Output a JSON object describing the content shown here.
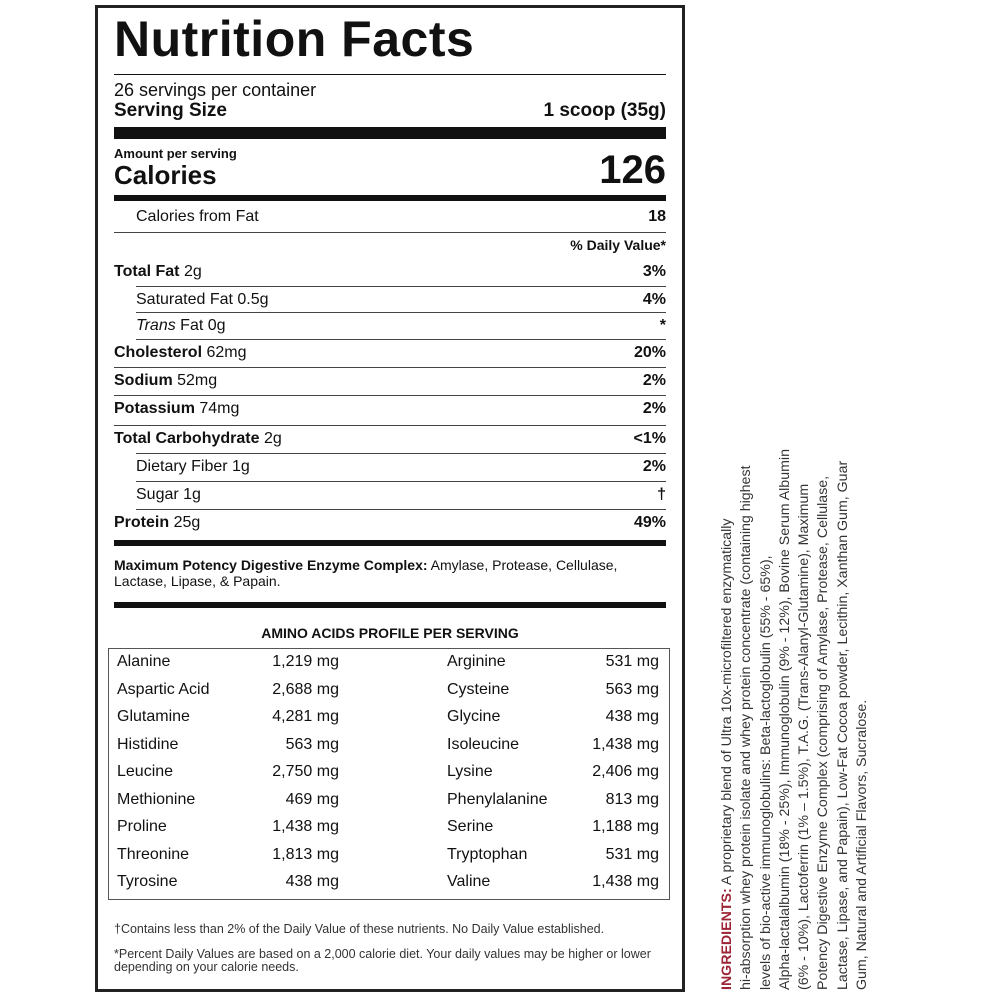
{
  "title": "Nutrition Facts",
  "servings_per_container": "26 servings per container",
  "serving_size_label": "Serving Size",
  "serving_size_value": "1 scoop (35g)",
  "amount_per_serving": "Amount per serving",
  "calories_label": "Calories",
  "calories_value": "126",
  "calories_from_fat_label": "Calories from Fat",
  "calories_from_fat_value": "18",
  "daily_value_header": "% Daily Value*",
  "nutrients": [
    {
      "name": "Total Fat",
      "amount": "2g",
      "dv": "3%",
      "bold": true,
      "indent": false
    },
    {
      "name": "Saturated Fat",
      "amount": "0.5g",
      "dv": "4%",
      "bold": false,
      "indent": true
    },
    {
      "name": "Trans",
      "amount": "Fat 0g",
      "dv": "*",
      "bold": false,
      "indent": true,
      "italic": true
    },
    {
      "name": "Cholesterol",
      "amount": "62mg",
      "dv": "20%",
      "bold": true,
      "indent": false
    },
    {
      "name": "Sodium",
      "amount": "52mg",
      "dv": "2%",
      "bold": true,
      "indent": false
    },
    {
      "name": "Potassium",
      "amount": "74mg",
      "dv": "2%",
      "bold": true,
      "indent": false
    },
    {
      "name": "Total Carbohydrate",
      "amount": "2g",
      "dv": "<1%",
      "bold": true,
      "indent": false
    },
    {
      "name": "Dietary Fiber",
      "amount": "1g",
      "dv": "2%",
      "bold": false,
      "indent": true
    },
    {
      "name": "Sugar",
      "amount": "1g",
      "dv": "†",
      "bold": false,
      "indent": true
    },
    {
      "name": "Protein",
      "amount": "25g",
      "dv": "49%",
      "bold": true,
      "indent": false
    }
  ],
  "enzyme_label": "Maximum Potency Digestive Enzyme Complex:",
  "enzyme_text_1": " Amylase, Protease, Cellulase,",
  "enzyme_text_2": "Lactase, Lipase, & Papain.",
  "amino_header": "AMINO ACIDS PROFILE PER SERVING",
  "amino_rows": [
    [
      "Alanine",
      "1,219 mg",
      "Arginine",
      "531 mg"
    ],
    [
      "Aspartic Acid",
      "2,688 mg",
      "Cysteine",
      "563 mg"
    ],
    [
      "Glutamine",
      "4,281 mg",
      "Glycine",
      "438 mg"
    ],
    [
      "Histidine",
      "563 mg",
      "Isoleucine",
      "1,438 mg"
    ],
    [
      "Leucine",
      "2,750 mg",
      "Lysine",
      "2,406 mg"
    ],
    [
      "Methionine",
      "469 mg",
      "Phenylalanine",
      "813 mg"
    ],
    [
      "Proline",
      "1,438 mg",
      "Serine",
      "1,188 mg"
    ],
    [
      "Threonine",
      "1,813 mg",
      "Tryptophan",
      "531 mg"
    ],
    [
      "Tyrosine",
      "438 mg",
      "Valine",
      "1,438 mg"
    ]
  ],
  "footnote_1": "†Contains less than 2% of the Daily Value of these nutrients. No Daily Value established.",
  "footnote_2a": "*Percent Daily Values are based on a 2,000 calorie diet. Your daily values may be higher or lower",
  "footnote_2b": "depending on your calorie needs.",
  "ingredients": {
    "label": "INGREDIENTS:",
    "lines": [
      " A proprietary blend of Ultra 10x-microfiltered enzymatically",
      "hi-absorption whey protein isolate and whey protein concentrate (containing highest",
      "levels of bio-active immunoglobulins: Beta-lactoglobulin (55% - 65%),",
      "Alpha-lactalalbumin (18% - 25%), Immunoglobulin (9% - 12%), Bovine Serum Albumin",
      "(6% - 10%), Lactoferrin (1% – 1.5%), T.A.G. (Trans-Alanyl-Glutamine), Maximum",
      "Potency Digestive Enzyme Complex (comprising of Amylase, Protease, Cellulase,",
      "Lactase, Lipase, and Papain), Low-Fat Cocoa powder, Lecithin, Xanthan Gum, Guar",
      "Gum, Natural and Artificial Flavors, Sucralose."
    ],
    "label_color": "#9b2335"
  }
}
